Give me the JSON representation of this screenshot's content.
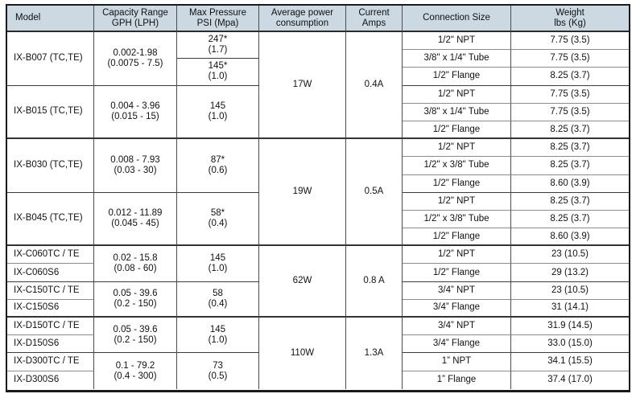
{
  "colors": {
    "header_bg": "#ccd8e2",
    "border_outer": "#1a1a1a",
    "border_group": "#333333",
    "border_inner": "#8c8c8c"
  },
  "table": {
    "header": {
      "model": "Model",
      "capacity": [
        "Capacity Range",
        "GPH (LPH)"
      ],
      "pressure": [
        "Max Pressure",
        "PSI (Mpa)"
      ],
      "power": [
        "Average power",
        "consumption"
      ],
      "current": [
        "Current",
        "Amps"
      ],
      "connection": "Connection Size",
      "weight": [
        "Weight",
        "lbs (Kg)"
      ]
    },
    "models": [
      "IX-B007 (TC,TE)",
      "IX-B015 (TC,TE)",
      "IX-B030 (TC,TE)",
      "IX-B045 (TC,TE)",
      "IX-C060TC / TE",
      "IX-C060S6",
      "IX-C150TC / TE",
      "IX-C150S6",
      "IX-D150TC / TE",
      "IX-D150S6",
      "IX-D300TC / TE",
      "IX-D300S6"
    ],
    "capacities": [
      [
        "0.002-1.98",
        "(0.0075 - 7.5)"
      ],
      [
        "0.004 - 3.96",
        "(0.015 - 15)"
      ],
      [
        "0.008 - 7.93",
        "(0.03 - 30)"
      ],
      [
        "0.012 - 11.89",
        "(0.045 - 45)"
      ],
      [
        "0.02 - 15.8",
        "(0.08 - 60)"
      ],
      [
        "0.05 - 39.6",
        "(0.2 - 150)"
      ],
      [
        "0.05 - 39.6",
        "(0.2 - 150)"
      ],
      [
        "0.1 - 79.2",
        "(0.4 - 300)"
      ]
    ],
    "pressures": [
      [
        "247*",
        "(1.7)"
      ],
      [
        "145*",
        "(1.0)"
      ],
      [
        "145",
        "(1.0)"
      ],
      [
        "87*",
        "(0.6)"
      ],
      [
        "58*",
        "(0.4)"
      ],
      [
        "145",
        "(1.0)"
      ],
      [
        "58",
        "(0.4)"
      ],
      [
        "145",
        "(1.0)"
      ],
      [
        "73",
        "(0.5)"
      ]
    ],
    "powers": [
      "17W",
      "19W",
      "62W",
      "110W"
    ],
    "currents": [
      "0.4A",
      "0.5A",
      "0.8 A",
      "1.3A"
    ],
    "rows": [
      {
        "connection": "1/2\" NPT",
        "weight": "7.75 (3.5)"
      },
      {
        "connection": "3/8\" x 1/4\" Tube",
        "weight": "7.75 (3.5)"
      },
      {
        "connection": "1/2\" Flange",
        "weight": "8.25 (3.7)"
      },
      {
        "connection": "1/2\" NPT",
        "weight": "7.75 (3.5)"
      },
      {
        "connection": "3/8\" x 1/4\" Tube",
        "weight": "7.75 (3.5)"
      },
      {
        "connection": "1/2\" Flange",
        "weight": "8.25 (3.7)"
      },
      {
        "connection": "1/2\" NPT",
        "weight": "8.25 (3.7)"
      },
      {
        "connection": "1/2\" x 3/8\" Tube",
        "weight": "8.25 (3.7)"
      },
      {
        "connection": "1/2\" Flange",
        "weight": "8.60 (3.9)"
      },
      {
        "connection": "1/2\" NPT",
        "weight": "8.25 (3.7)"
      },
      {
        "connection": "1/2\" x 3/8\" Tube",
        "weight": "8.25 (3.7)"
      },
      {
        "connection": "1/2\" Flange",
        "weight": "8.60 (3.9)"
      },
      {
        "connection": "1/2” NPT",
        "weight": "23 (10.5)"
      },
      {
        "connection": "1/2” Flange",
        "weight": "29 (13.2)"
      },
      {
        "connection": "3/4” NPT",
        "weight": "23 (10.5)"
      },
      {
        "connection": "3/4” Flange",
        "weight": "31 (14.1)"
      },
      {
        "connection": "3/4” NPT",
        "weight": "31.9 (14.5)"
      },
      {
        "connection": "3/4” Flange",
        "weight": "33.0 (15.0)"
      },
      {
        "connection": "1” NPT",
        "weight": "34.1 (15.5)"
      },
      {
        "connection": "1” Flange",
        "weight": "37.4 (17.0)"
      }
    ]
  }
}
